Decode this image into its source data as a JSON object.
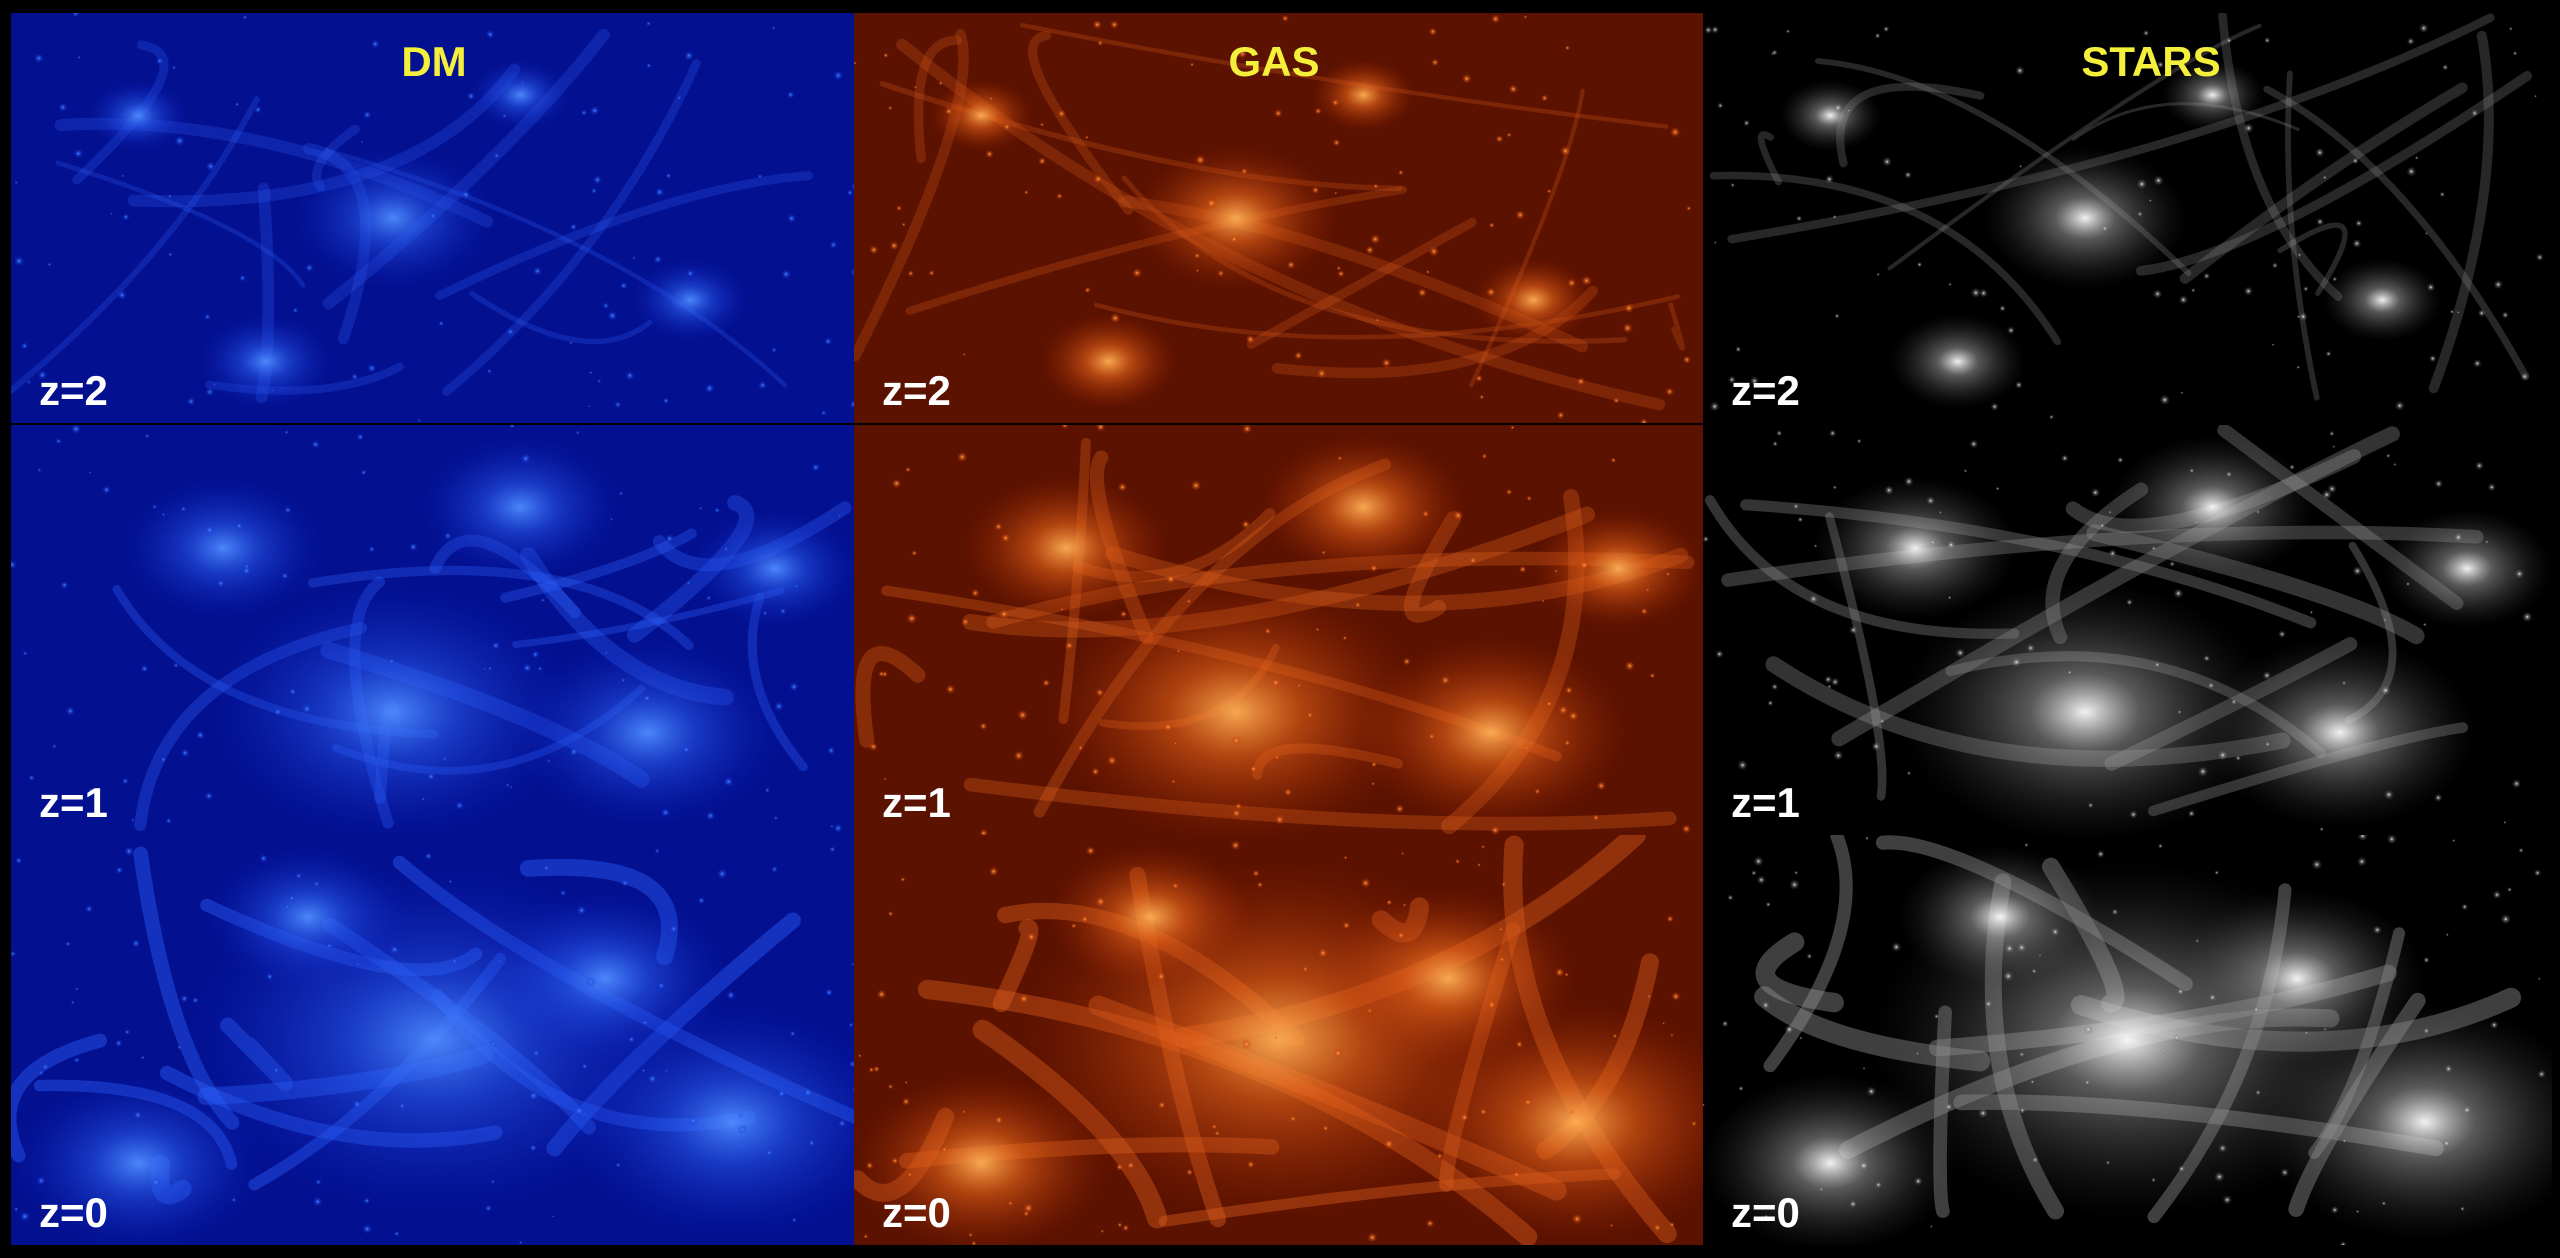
{
  "columns": [
    "DM",
    "GAS",
    "STARS"
  ],
  "panels": [
    [
      "z=2",
      "z=2",
      "z=2"
    ],
    [
      "z=1",
      "z=1",
      "z=1"
    ],
    [
      "z=0",
      "z=0",
      "z=0"
    ]
  ]
}
